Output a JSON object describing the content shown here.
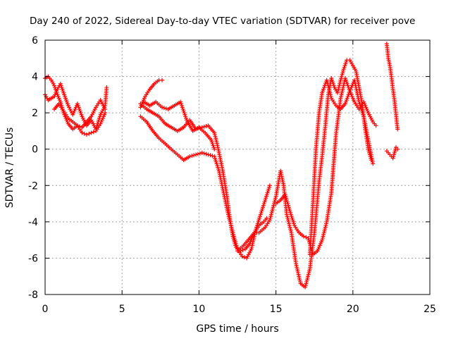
{
  "chart_data": {
    "type": "scatter",
    "title": "Day 240 of 2022, Sidereal Day-to-day VTEC variation (SDTVAR) for receiver pove",
    "xlabel": "GPS time / hours",
    "ylabel": "SDTVAR / TECUs",
    "xlim": [
      0,
      25
    ],
    "ylim": [
      -8,
      6
    ],
    "xticks": [
      "0",
      "5",
      "10",
      "15",
      "20",
      "25"
    ],
    "yticks": [
      "-8",
      "-6",
      "-4",
      "-2",
      "0",
      "2",
      "4",
      "6"
    ],
    "grid": true,
    "marker": "+",
    "color": "#ff0000",
    "series": [
      {
        "x": [
          0.0,
          0.2,
          0.4,
          0.6,
          0.8,
          1.0,
          1.2,
          1.5,
          1.8,
          2.1,
          2.4,
          2.7,
          3.0,
          3.3,
          3.6,
          3.9,
          4.0
        ],
        "y": [
          3.0,
          2.7,
          2.8,
          2.9,
          3.3,
          3.6,
          3.1,
          2.4,
          1.9,
          2.5,
          1.8,
          1.3,
          1.6,
          1.1,
          1.9,
          2.4,
          3.4
        ]
      },
      {
        "x": [
          0.0,
          0.2,
          0.4,
          0.6,
          0.8,
          1.0,
          1.2,
          1.5,
          1.8,
          2.1,
          2.4,
          2.7,
          3.0,
          3.3,
          3.6,
          3.9
        ],
        "y": [
          3.9,
          4.0,
          3.8,
          3.5,
          3.0,
          2.6,
          2.0,
          1.4,
          1.1,
          1.3,
          0.9,
          0.8,
          0.9,
          1.0,
          1.4,
          2.0
        ]
      },
      {
        "x": [
          0.6,
          0.9,
          1.2,
          1.5,
          1.8,
          2.1,
          2.4,
          2.7,
          3.0,
          3.3,
          3.6,
          3.9
        ],
        "y": [
          2.2,
          2.5,
          2.1,
          1.7,
          1.5,
          1.3,
          1.2,
          1.5,
          1.8,
          2.3,
          2.7,
          2.2
        ]
      },
      {
        "x": [
          6.2,
          6.5,
          6.8,
          7.1,
          7.4,
          7.6
        ],
        "y": [
          2.3,
          2.9,
          3.3,
          3.6,
          3.8,
          3.8
        ]
      },
      {
        "x": [
          6.2,
          6.6,
          7.0,
          7.4,
          7.8,
          8.2,
          8.6,
          9.0,
          9.4,
          9.8,
          10.2,
          10.6,
          11.0,
          11.2,
          11.5,
          11.8,
          12.0,
          12.2,
          12.4,
          12.7,
          13.0,
          13.3,
          13.6,
          13.9,
          14.2,
          14.4
        ],
        "y": [
          2.5,
          2.2,
          2.0,
          1.8,
          1.4,
          1.2,
          1.0,
          1.2,
          1.6,
          1.1,
          1.2,
          1.3,
          0.9,
          0.2,
          -1.0,
          -2.5,
          -3.8,
          -4.8,
          -5.4,
          -5.6,
          -5.5,
          -5.2,
          -4.6,
          -4.2,
          -4.0,
          -3.8
        ]
      },
      {
        "x": [
          6.2,
          6.6,
          7.0,
          7.4,
          7.8,
          8.2,
          8.6,
          9.0,
          9.4,
          9.8,
          10.2,
          10.6,
          11.0,
          11.3,
          11.6,
          11.9,
          12.2,
          12.5,
          12.8,
          13.1,
          13.4,
          13.7,
          14.0,
          14.3,
          14.6
        ],
        "y": [
          1.8,
          1.5,
          1.0,
          0.6,
          0.3,
          0.0,
          -0.3,
          -0.6,
          -0.4,
          -0.3,
          -0.2,
          -0.3,
          -0.4,
          -1.2,
          -2.4,
          -3.6,
          -4.6,
          -5.5,
          -5.9,
          -6.0,
          -5.5,
          -4.4,
          -3.6,
          -2.8,
          -2.0
        ]
      },
      {
        "x": [
          6.4,
          6.8,
          7.2,
          7.6,
          8.0,
          8.4,
          8.8,
          9.2,
          9.6,
          10.0,
          10.4,
          10.8,
          11.0
        ],
        "y": [
          2.6,
          2.4,
          2.6,
          2.3,
          2.2,
          2.4,
          2.6,
          1.6,
          1.0,
          1.2,
          0.9,
          0.5,
          0.0
        ]
      },
      {
        "x": [
          12.5,
          12.9,
          13.3,
          13.6,
          13.9,
          14.3,
          14.6,
          15.0,
          15.3,
          15.5,
          15.7,
          16.0,
          16.3,
          16.6,
          16.9,
          17.2,
          17.5,
          17.8,
          18.0,
          18.2,
          18.4,
          18.6,
          18.8,
          19.0,
          19.2,
          19.4,
          19.6,
          19.8,
          20.0,
          20.2,
          20.4,
          20.6,
          20.8,
          21.0,
          21.2
        ],
        "y": [
          -5.6,
          -5.3,
          -4.9,
          -4.6,
          -4.6,
          -4.3,
          -3.9,
          -2.6,
          -1.2,
          -2.0,
          -3.6,
          -4.6,
          -6.3,
          -7.4,
          -7.6,
          -6.6,
          -4.6,
          -1.8,
          -0.4,
          1.2,
          3.0,
          3.9,
          3.4,
          3.1,
          3.8,
          4.4,
          4.9,
          4.9,
          4.6,
          4.3,
          3.4,
          2.5,
          1.1,
          0.0,
          -0.6
        ]
      },
      {
        "x": [
          15.0,
          15.3,
          15.6,
          15.9,
          16.2,
          16.5,
          16.8,
          17.1,
          17.4,
          17.7,
          18.0,
          18.3,
          18.6,
          18.9,
          19.2,
          19.5,
          19.8,
          20.1,
          20.4,
          20.7,
          21.0,
          21.3,
          21.5
        ],
        "y": [
          -3.0,
          -2.8,
          -2.5,
          -3.4,
          -4.2,
          -4.6,
          -4.8,
          -4.9,
          -5.8,
          -5.6,
          -5.0,
          -4.0,
          -2.4,
          0.8,
          2.8,
          3.9,
          3.2,
          2.6,
          2.2,
          2.6,
          2.0,
          1.5,
          1.3
        ]
      },
      {
        "x": [
          17.2,
          17.4,
          17.6,
          17.8,
          18.0,
          18.3,
          18.6,
          18.9,
          19.2,
          19.5,
          19.8,
          20.1,
          20.4,
          20.7,
          21.0,
          21.3
        ],
        "y": [
          -5.8,
          -3.0,
          0.0,
          2.0,
          3.1,
          3.8,
          2.8,
          2.4,
          2.2,
          2.5,
          3.2,
          3.8,
          2.6,
          1.8,
          0.5,
          -0.8
        ]
      },
      {
        "x": [
          22.2,
          22.3,
          22.4,
          22.5,
          22.6,
          22.7,
          22.8,
          22.9
        ],
        "y": [
          5.8,
          5.0,
          4.6,
          4.0,
          3.3,
          2.7,
          1.9,
          1.1
        ]
      },
      {
        "x": [
          22.2,
          22.4,
          22.6,
          22.8,
          22.9
        ],
        "y": [
          -0.1,
          -0.3,
          -0.5,
          0.1,
          0.0
        ]
      }
    ]
  }
}
